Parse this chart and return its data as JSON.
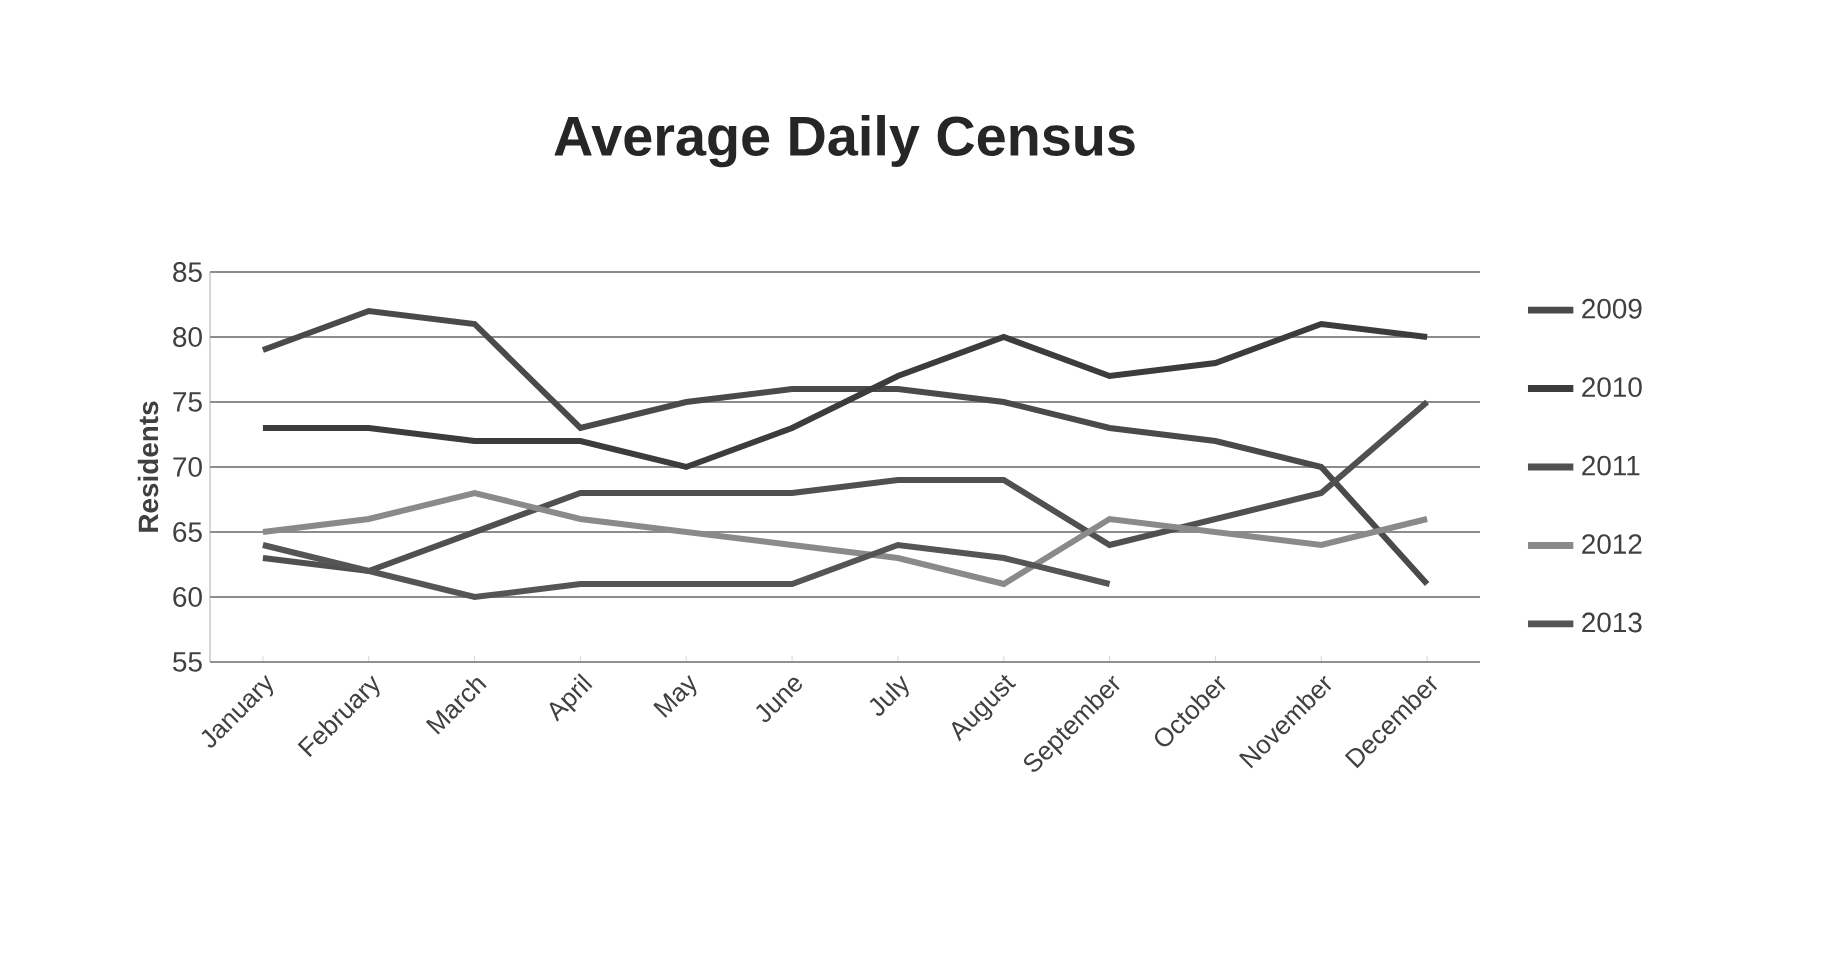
{
  "chart_data": {
    "type": "line",
    "title": "Average Daily Census",
    "ylabel": "Residents",
    "categories": [
      "January",
      "February",
      "March",
      "April",
      "May",
      "June",
      "July",
      "August",
      "September",
      "October",
      "November",
      "December"
    ],
    "series": [
      {
        "name": "2009",
        "color": "#4a4a4a",
        "values": [
          79,
          82,
          81,
          73,
          75,
          76,
          76,
          75,
          73,
          72,
          70,
          61
        ]
      },
      {
        "name": "2010",
        "color": "#3c3c3c",
        "values": [
          73,
          73,
          72,
          72,
          70,
          73,
          77,
          80,
          77,
          78,
          81,
          80
        ]
      },
      {
        "name": "2011",
        "color": "#505050",
        "values": [
          63,
          62,
          65,
          68,
          68,
          68,
          69,
          69,
          64,
          66,
          68,
          75
        ]
      },
      {
        "name": "2012",
        "color": "#8a8a8a",
        "values": [
          65,
          66,
          68,
          66,
          65,
          64,
          63,
          61,
          66,
          65,
          64,
          66
        ]
      },
      {
        "name": "2013",
        "color": "#555555",
        "values": [
          64,
          62,
          60,
          61,
          61,
          61,
          64,
          63,
          61,
          null,
          null,
          null
        ]
      }
    ],
    "ylim": [
      55,
      85
    ],
    "yticks": [
      55,
      60,
      65,
      70,
      75,
      80,
      85
    ],
    "grid": "y",
    "legend": "right"
  }
}
